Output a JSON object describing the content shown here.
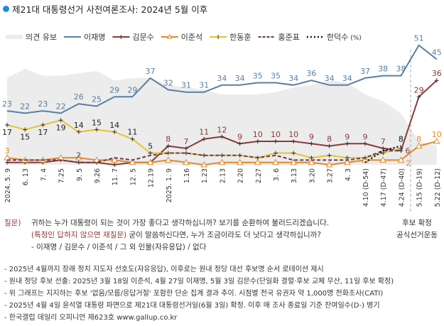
{
  "title": "제21대 대통령선거 사전여론조사: 2024년 5월 이후",
  "chart_data": {
    "type": "line",
    "title": "제21대 대통령선거 사전여론조사: 2024년 5월 이후",
    "unit": "(%)",
    "legend_position": "top",
    "categories": [
      "2024. 5. 9",
      "6. 13",
      "7. 4",
      "7.25",
      "9. 5",
      "9.26",
      "11. 7",
      "12. 5",
      "12.19",
      "2025. 1. 9",
      "1.16",
      "1.23",
      "2.13",
      "2.20",
      "2.27",
      "3. 6",
      "3.13",
      "3.20",
      "3.27",
      "4. 3",
      "4.10 (D-54)",
      "4.17 (D-47)",
      "4.24 (D-40)",
      "5.15 (D-19)",
      "5.22 (D-12)"
    ],
    "ylim": [
      0,
      55
    ],
    "grid": false,
    "area": {
      "name": "의견 유보",
      "color": "#ececec",
      "values": [
        37,
        41,
        38,
        38,
        39,
        40,
        36,
        37,
        37,
        34,
        33,
        32,
        30,
        30,
        30,
        31,
        33,
        34,
        36,
        35,
        30,
        27,
        22,
        10,
        8
      ]
    },
    "series": [
      {
        "name": "이재명",
        "color": "#5b7fa3",
        "style": "solid",
        "marker": "none",
        "values": [
          23,
          22,
          23,
          22,
          26,
          25,
          29,
          29,
          37,
          32,
          31,
          31,
          34,
          34,
          35,
          35,
          34,
          36,
          34,
          34,
          37,
          38,
          38,
          51,
          45
        ],
        "labels": [
          23,
          22,
          23,
          22,
          26,
          25,
          29,
          29,
          37,
          32,
          31,
          31,
          34,
          34,
          35,
          35,
          34,
          36,
          34,
          34,
          37,
          38,
          38,
          51,
          45
        ]
      },
      {
        "name": "김문수",
        "color": "#8b3a3a",
        "style": "solid",
        "marker": "plus",
        "values": [
          1,
          1,
          1,
          2,
          1,
          1,
          0,
          1,
          1,
          8,
          7,
          11,
          12,
          9,
          10,
          10,
          10,
          9,
          8,
          9,
          9,
          7,
          6,
          29,
          36
        ],
        "labels": [
          null,
          null,
          null,
          null,
          null,
          null,
          null,
          null,
          null,
          8,
          7,
          11,
          12,
          9,
          10,
          10,
          10,
          9,
          8,
          9,
          9,
          7,
          6,
          29,
          36
        ]
      },
      {
        "name": "이준석",
        "color": "#e08a2c",
        "style": "solid",
        "marker": "triangle",
        "values": [
          3,
          2,
          2,
          3,
          3,
          2,
          2,
          1,
          1,
          2,
          1,
          0,
          1,
          1,
          1,
          1,
          1,
          1,
          0,
          1,
          2,
          2,
          2,
          8,
          10
        ],
        "labels": [
          3,
          null,
          null,
          null,
          null,
          null,
          null,
          null,
          null,
          null,
          null,
          null,
          null,
          null,
          null,
          null,
          null,
          null,
          null,
          null,
          null,
          null,
          2,
          8,
          10
        ]
      },
      {
        "name": "한동훈",
        "color": "#e8c12e",
        "style": "solid",
        "marker": "plus",
        "values": [
          17,
          15,
          17,
          19,
          14,
          15,
          14,
          11,
          5,
          5,
          5,
          4,
          4,
          4,
          3,
          5,
          5,
          3,
          4,
          3,
          3,
          5,
          7,
          null,
          null
        ],
        "labels": [
          17,
          15,
          17,
          19,
          14,
          15,
          14,
          11,
          5,
          null,
          null,
          null,
          null,
          null,
          null,
          null,
          null,
          null,
          null,
          null,
          null,
          null,
          null,
          null,
          null
        ]
      },
      {
        "name": "홍준표",
        "color": "#6b3a4a",
        "style": "dashed",
        "marker": "none",
        "values": [
          2,
          2,
          2,
          2,
          1,
          1,
          3,
          2,
          4,
          5,
          5,
          4,
          4,
          4,
          3,
          4,
          2,
          2,
          2,
          2,
          3,
          6,
          6,
          null,
          null
        ],
        "labels": [
          null,
          null,
          null,
          null,
          2,
          null,
          null,
          null,
          null,
          null,
          null,
          null,
          null,
          null,
          null,
          null,
          null,
          null,
          null,
          null,
          null,
          null,
          null,
          null,
          null
        ]
      },
      {
        "name": "한덕수",
        "color": "#111111",
        "style": "dotted",
        "marker": "none",
        "values": [
          null,
          null,
          null,
          null,
          null,
          null,
          null,
          null,
          null,
          null,
          null,
          null,
          null,
          null,
          null,
          null,
          null,
          null,
          null,
          null,
          1,
          6,
          8,
          null,
          null
        ],
        "labels": [
          null,
          null,
          null,
          null,
          null,
          null,
          null,
          null,
          null,
          null,
          null,
          null,
          null,
          null,
          null,
          null,
          null,
          null,
          null,
          null,
          null,
          null,
          8,
          null,
          null
        ]
      }
    ]
  },
  "question": {
    "label": "질문)",
    "line1": "귀하는 누가 대통령이 되는 것이 가장 좋다고 생각하십니까? 보기를 순환하여 불러드리겠습니다.",
    "line2_highlight": "(특정인 답하지 않으면 재질문)",
    "line2_rest": " 굳이 말씀하신다면, 누가 조금이라도 더 낫다고 생각하십니까?",
    "line3": "- 이재명 / 김문수 / 이준석 / 그 외 인물(자유응답) / 없다"
  },
  "side_note": {
    "line1": "후보 확정",
    "line2": "공식선거운동"
  },
  "notes": [
    "- 2025년 4월까지 장래 정치 지도자 선호도(자유응답), 이후로는 원내 정당 대선 후보명 순서 로테이션 제시",
    "- 원내 정당 후보 선출: 2025년 3월 18일 이준석, 4월 27일 이재명, 5월 3일 김문수(단일화 결렬·후보 교체 무산, 11일 후보 확정)",
    "- 위 그래프는 지지하는 후보 '없음/모름/응답거절' 포함한 단순 집계 결과 추이. 시점별 전국 유권자 약 1,000명 전화조사(CATI)",
    "- 2025년 4월 4일 윤석열 대통령 파면으로 제21대 대통령선거일(6월 3일) 확정. 이후 매 조사 종료일 기준 잔여일수(D-) 병기",
    "- 한국갤럽 데일리 오피니언 제623호 www.gallup.co.kr"
  ]
}
